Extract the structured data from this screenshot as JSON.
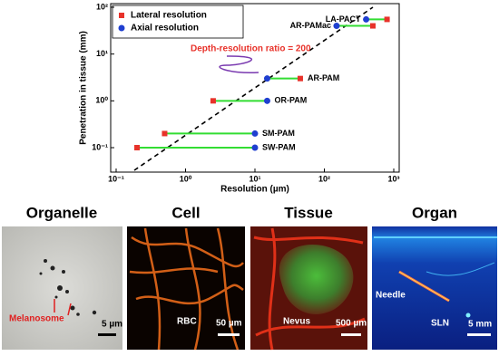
{
  "chart_data": {
    "type": "dumbbell",
    "ylabel": "Penetration in tissue (mm)",
    "xlabel": "Resolution (µm)",
    "annotation": "Depth-resolution ratio = 200",
    "categories": [
      "SW-PAM",
      "SM-PAM",
      "OR-PAM",
      "AR-PAM",
      "AR-PAMac",
      "LA-PACT"
    ],
    "values": [
      0.1,
      0.2,
      1,
      3,
      40,
      55
    ],
    "series": [
      {
        "name": "Lateral resolution",
        "color": "#e8322a",
        "x": [
          0.2,
          0.5,
          2.5,
          45,
          500,
          800
        ]
      },
      {
        "name": "Axial resolution",
        "color": "#1f3fd0",
        "x": [
          10,
          10,
          15,
          15,
          150,
          400
        ]
      }
    ],
    "connector_color": "#33dd33",
    "log_x": true,
    "log_y": true,
    "xlim": [
      0.1,
      1000
    ],
    "ylim": [
      0.03,
      100
    ],
    "xticks": [
      {
        "value": 0.1,
        "label": "10⁻¹"
      },
      {
        "value": 1,
        "label": "10⁰"
      },
      {
        "value": 10,
        "label": "10¹"
      },
      {
        "value": 100,
        "label": "10²"
      },
      {
        "value": 1000,
        "label": "10³"
      }
    ],
    "yticks": [
      {
        "value": 0.1,
        "label": "10⁻¹"
      },
      {
        "value": 1,
        "label": "10⁰"
      },
      {
        "value": 10,
        "label": "10¹"
      },
      {
        "value": 100,
        "label": "10²"
      }
    ],
    "legend": "upper-left"
  },
  "panels": [
    {
      "title": "Organelle",
      "labels": [
        "Melanosome",
        "5 µm"
      ]
    },
    {
      "title": "Cell",
      "labels": [
        "RBC",
        "50 µm"
      ]
    },
    {
      "title": "Tissue",
      "labels": [
        "Nevus",
        "500 µm"
      ]
    },
    {
      "title": "Organ",
      "labels": [
        "Needle",
        "SLN",
        "5 mm"
      ]
    }
  ]
}
